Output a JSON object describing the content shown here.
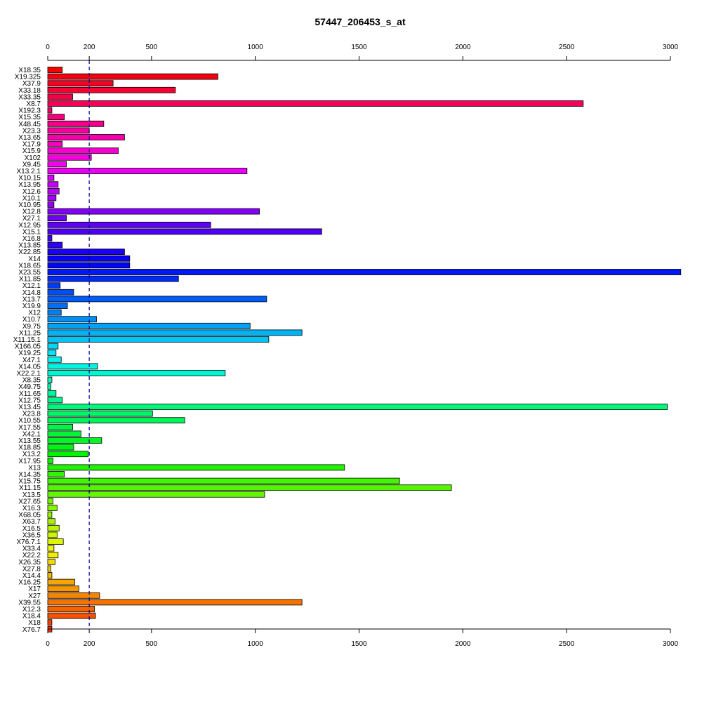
{
  "chart_data": {
    "type": "bar",
    "orientation": "horizontal",
    "title": "57447_206453_s_at",
    "xlabel": "",
    "ylabel": "",
    "xlim": [
      0,
      3000
    ],
    "x_ticks": [
      0,
      200,
      500,
      1000,
      1500,
      2000,
      2500,
      3000
    ],
    "x_tick_labels": [
      "0",
      "200",
      "500",
      "1000",
      "1500",
      "2000",
      "2500",
      "3000"
    ],
    "reference_line": 200,
    "reference_line_style": "dashed",
    "reference_line_color": "#00008b",
    "axes_top_and_bottom": true,
    "grid": false,
    "legend": "none",
    "bar_colors": "rainbow gradient from red through yellow, green, cyan, blue, magenta back to red",
    "categories": [
      "X18.35",
      "X19.325",
      "X37.9",
      "X33.18",
      "X33.35",
      "X8.7",
      "X192.3",
      "X15.35",
      "X48.45",
      "X23.3",
      "X13.65",
      "X17.9",
      "X15.9",
      "X102",
      "X9.45",
      "X13.2.1",
      "X10.15",
      "X13.95",
      "X12.6",
      "X10.1",
      "X10.95",
      "X12.8",
      "X27.1",
      "X12.95",
      "X15.1",
      "X16.8",
      "X13.85",
      "X22.85",
      "X14",
      "X18.65",
      "X23.55",
      "X11.85",
      "X12.1",
      "X14.8",
      "X13.7",
      "X19.9",
      "X12",
      "X10.7",
      "X9.75",
      "X11.25",
      "X11.15.1",
      "X166.05",
      "X19.25",
      "X47.1",
      "X14.05",
      "X22.2.1",
      "X8.35",
      "X49.75",
      "X11.65",
      "X12.75",
      "X13.45",
      "X23.8",
      "X10.55",
      "X17.55",
      "X42.1",
      "X13.55",
      "X18.85",
      "X13.2",
      "X17.95",
      "X13",
      "X14.35",
      "X15.75",
      "X11.15",
      "X13.5",
      "X27.65",
      "X16.3",
      "X68.05",
      "X63.7",
      "X16.5",
      "X36.5",
      "X76.7.1",
      "X33.4",
      "X22.2",
      "X26.35",
      "X27.8",
      "X14.4",
      "X16.25",
      "X17",
      "X27",
      "X39.55",
      "X12.3",
      "X18.4",
      "X18",
      "X76.7"
    ],
    "values": [
      70,
      820,
      315,
      615,
      120,
      2580,
      20,
      80,
      270,
      200,
      370,
      70,
      340,
      210,
      90,
      960,
      30,
      50,
      55,
      40,
      30,
      1020,
      90,
      785,
      1320,
      20,
      70,
      370,
      395,
      395,
      3050,
      630,
      60,
      125,
      1055,
      95,
      65,
      235,
      975,
      1225,
      1065,
      50,
      40,
      65,
      240,
      855,
      20,
      15,
      40,
      70,
      2985,
      505,
      660,
      120,
      160,
      260,
      125,
      195,
      25,
      1430,
      80,
      1695,
      1945,
      1045,
      25,
      45,
      20,
      35,
      55,
      45,
      75,
      30,
      50,
      35,
      15,
      20,
      130,
      150,
      250,
      1225,
      225,
      230,
      20,
      20
    ]
  }
}
